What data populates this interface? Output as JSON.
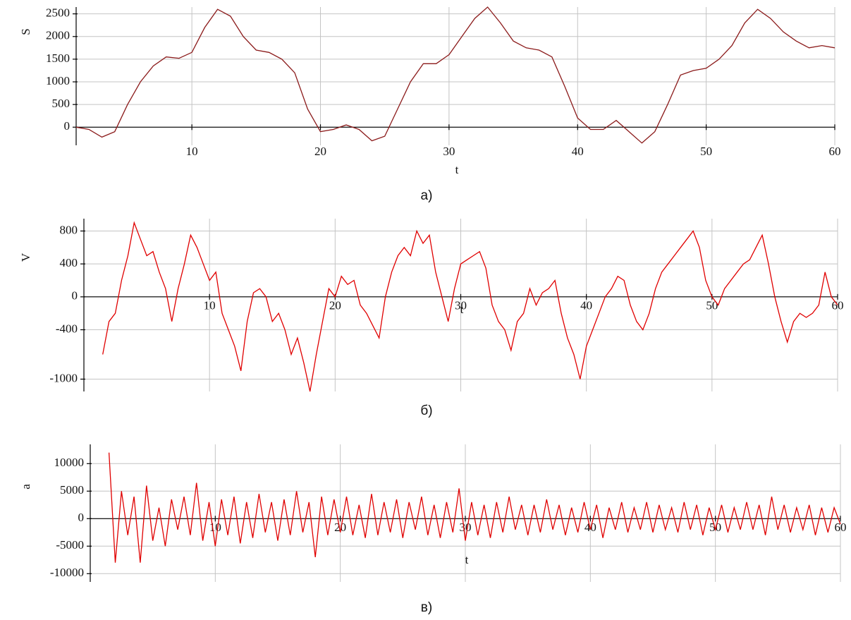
{
  "chart_data": [
    {
      "type": "line",
      "caption": "а)",
      "xlabel": "t",
      "ylabel": "S",
      "color": "#8b1a1a",
      "grid": true,
      "xlim": [
        1,
        60
      ],
      "ylim": [
        -400,
        2650
      ],
      "xticks": [
        10,
        20,
        30,
        40,
        50,
        60
      ],
      "yticks": [
        0,
        500,
        1000,
        1500,
        2000,
        2500
      ],
      "x": [
        1,
        2,
        3,
        4,
        5,
        6,
        7,
        8,
        9,
        10,
        11,
        12,
        13,
        14,
        15,
        16,
        17,
        18,
        19,
        20,
        21,
        22,
        23,
        24,
        25,
        26,
        27,
        28,
        29,
        30,
        31,
        32,
        33,
        34,
        35,
        36,
        37,
        38,
        39,
        40,
        41,
        42,
        43,
        44,
        45,
        46,
        47,
        48,
        49,
        50,
        51,
        52,
        53,
        54,
        55,
        56,
        57,
        58,
        59,
        60
      ],
      "values": [
        0,
        -50,
        -220,
        -100,
        500,
        1000,
        1350,
        1550,
        1520,
        1650,
        2200,
        2600,
        2450,
        2000,
        1700,
        1650,
        1500,
        1200,
        400,
        -100,
        -50,
        50,
        -50,
        -300,
        -200,
        400,
        1000,
        1400,
        1400,
        1600,
        2000,
        2400,
        2650,
        2300,
        1900,
        1750,
        1700,
        1550,
        900,
        200,
        -50,
        -50,
        150,
        -100,
        -350,
        -100,
        500,
        1150,
        1250,
        1300,
        1500,
        1800,
        2300,
        2600,
        2400,
        2100,
        1900,
        1750,
        1800,
        1750
      ]
    },
    {
      "type": "line",
      "caption": "б)",
      "xlabel": "t",
      "ylabel": "V",
      "color": "#e00000",
      "grid": true,
      "xlim": [
        0,
        60
      ],
      "ylim": [
        -1150,
        950
      ],
      "xticks": [
        10,
        20,
        30,
        40,
        50,
        60
      ],
      "yticks": [
        -1000,
        -400,
        0,
        400,
        800
      ],
      "x": [
        1.5,
        2,
        2.5,
        3,
        3.5,
        4,
        4.5,
        5,
        5.5,
        6,
        6.5,
        7,
        7.5,
        8,
        8.5,
        9,
        9.5,
        10,
        10.5,
        11,
        11.5,
        12,
        12.5,
        13,
        13.5,
        14,
        14.5,
        15,
        15.5,
        16,
        16.5,
        17,
        17.5,
        18,
        18.5,
        19,
        19.5,
        20,
        20.5,
        21,
        21.5,
        22,
        22.5,
        23,
        23.5,
        24,
        24.5,
        25,
        25.5,
        26,
        26.5,
        27,
        27.5,
        28,
        28.5,
        29,
        29.5,
        30,
        30.5,
        31,
        31.5,
        32,
        32.5,
        33,
        33.5,
        34,
        34.5,
        35,
        35.5,
        36,
        36.5,
        37,
        37.5,
        38,
        38.5,
        39,
        39.5,
        40,
        40.5,
        41,
        41.5,
        42,
        42.5,
        43,
        43.5,
        44,
        44.5,
        45,
        45.5,
        46,
        46.5,
        47,
        47.5,
        48,
        48.5,
        49,
        49.5,
        50,
        50.5,
        51,
        51.5,
        52,
        52.5,
        53,
        53.5,
        54,
        54.5,
        55,
        55.5,
        56,
        56.5,
        57,
        57.5,
        58,
        58.5,
        59,
        59.5,
        60
      ],
      "values": [
        -700,
        -300,
        -200,
        200,
        500,
        900,
        700,
        500,
        550,
        300,
        100,
        -300,
        100,
        400,
        750,
        600,
        400,
        200,
        300,
        -200,
        -400,
        -600,
        -900,
        -300,
        50,
        100,
        0,
        -300,
        -200,
        -400,
        -700,
        -500,
        -800,
        -1150,
        -700,
        -300,
        100,
        0,
        250,
        150,
        200,
        -100,
        -200,
        -350,
        -500,
        0,
        300,
        500,
        600,
        500,
        800,
        650,
        750,
        300,
        0,
        -300,
        100,
        400,
        450,
        500,
        550,
        350,
        -100,
        -300,
        -400,
        -650,
        -300,
        -200,
        100,
        -100,
        50,
        100,
        200,
        -200,
        -500,
        -700,
        -1000,
        -600,
        -400,
        -200,
        0,
        100,
        250,
        200,
        -100,
        -300,
        -400,
        -200,
        100,
        300,
        400,
        500,
        600,
        700,
        800,
        600,
        200,
        0,
        -100,
        100,
        200,
        300,
        400,
        450,
        600,
        750,
        400,
        0,
        -300,
        -550,
        -300,
        -200,
        -250,
        -200,
        -100,
        300,
        0,
        -100
      ]
    },
    {
      "type": "line",
      "caption": "в)",
      "xlabel": "t",
      "ylabel": "a",
      "color": "#e00000",
      "grid": true,
      "xlim": [
        0,
        60
      ],
      "ylim": [
        -11500,
        13500
      ],
      "xticks": [
        10,
        20,
        30,
        40,
        50,
        60
      ],
      "yticks": [
        -10000,
        -5000,
        0,
        5000,
        10000
      ],
      "x": [
        1.5,
        2,
        2.5,
        3,
        3.5,
        4,
        4.5,
        5,
        5.5,
        6,
        6.5,
        7,
        7.5,
        8,
        8.5,
        9,
        9.5,
        10,
        10.5,
        11,
        11.5,
        12,
        12.5,
        13,
        13.5,
        14,
        14.5,
        15,
        15.5,
        16,
        16.5,
        17,
        17.5,
        18,
        18.5,
        19,
        19.5,
        20,
        20.5,
        21,
        21.5,
        22,
        22.5,
        23,
        23.5,
        24,
        24.5,
        25,
        25.5,
        26,
        26.5,
        27,
        27.5,
        28,
        28.5,
        29,
        29.5,
        30,
        30.5,
        31,
        31.5,
        32,
        32.5,
        33,
        33.5,
        34,
        34.5,
        35,
        35.5,
        36,
        36.5,
        37,
        37.5,
        38,
        38.5,
        39,
        39.5,
        40,
        40.5,
        41,
        41.5,
        42,
        42.5,
        43,
        43.5,
        44,
        44.5,
        45,
        45.5,
        46,
        46.5,
        47,
        47.5,
        48,
        48.5,
        49,
        49.5,
        50,
        50.5,
        51,
        51.5,
        52,
        52.5,
        53,
        53.5,
        54,
        54.5,
        55,
        55.5,
        56,
        56.5,
        57,
        57.5,
        58,
        58.5,
        59,
        59.5,
        60
      ],
      "values": [
        12000,
        -8000,
        5000,
        -3000,
        4000,
        -8000,
        6000,
        -4000,
        2000,
        -5000,
        3500,
        -2000,
        4000,
        -3000,
        6500,
        -4000,
        3000,
        -5000,
        3500,
        -3000,
        4000,
        -4500,
        3000,
        -3500,
        4500,
        -2500,
        3000,
        -4000,
        3500,
        -3000,
        5000,
        -2500,
        3000,
        -7000,
        4000,
        -3000,
        3500,
        -2500,
        4000,
        -3000,
        2500,
        -3500,
        4500,
        -3000,
        3000,
        -2500,
        3500,
        -3500,
        3000,
        -2000,
        4000,
        -3000,
        2500,
        -3500,
        3000,
        -2500,
        5500,
        -4000,
        3000,
        -3000,
        2500,
        -3500,
        3000,
        -2500,
        4000,
        -2000,
        2500,
        -3000,
        2500,
        -2500,
        3500,
        -2000,
        2500,
        -3000,
        2000,
        -2500,
        3000,
        -2000,
        2500,
        -3500,
        2000,
        -2000,
        3000,
        -2500,
        2000,
        -2000,
        3000,
        -2500,
        2500,
        -2000,
        2000,
        -2500,
        3000,
        -2000,
        2500,
        -3000,
        2000,
        -2000,
        2500,
        -2500,
        2000,
        -2000,
        3000,
        -2000,
        2500,
        -3000,
        4000,
        -2000,
        2500,
        -2500,
        2000,
        -2000,
        2500,
        -3000,
        2000,
        -2500,
        2000,
        -1000
      ]
    }
  ]
}
